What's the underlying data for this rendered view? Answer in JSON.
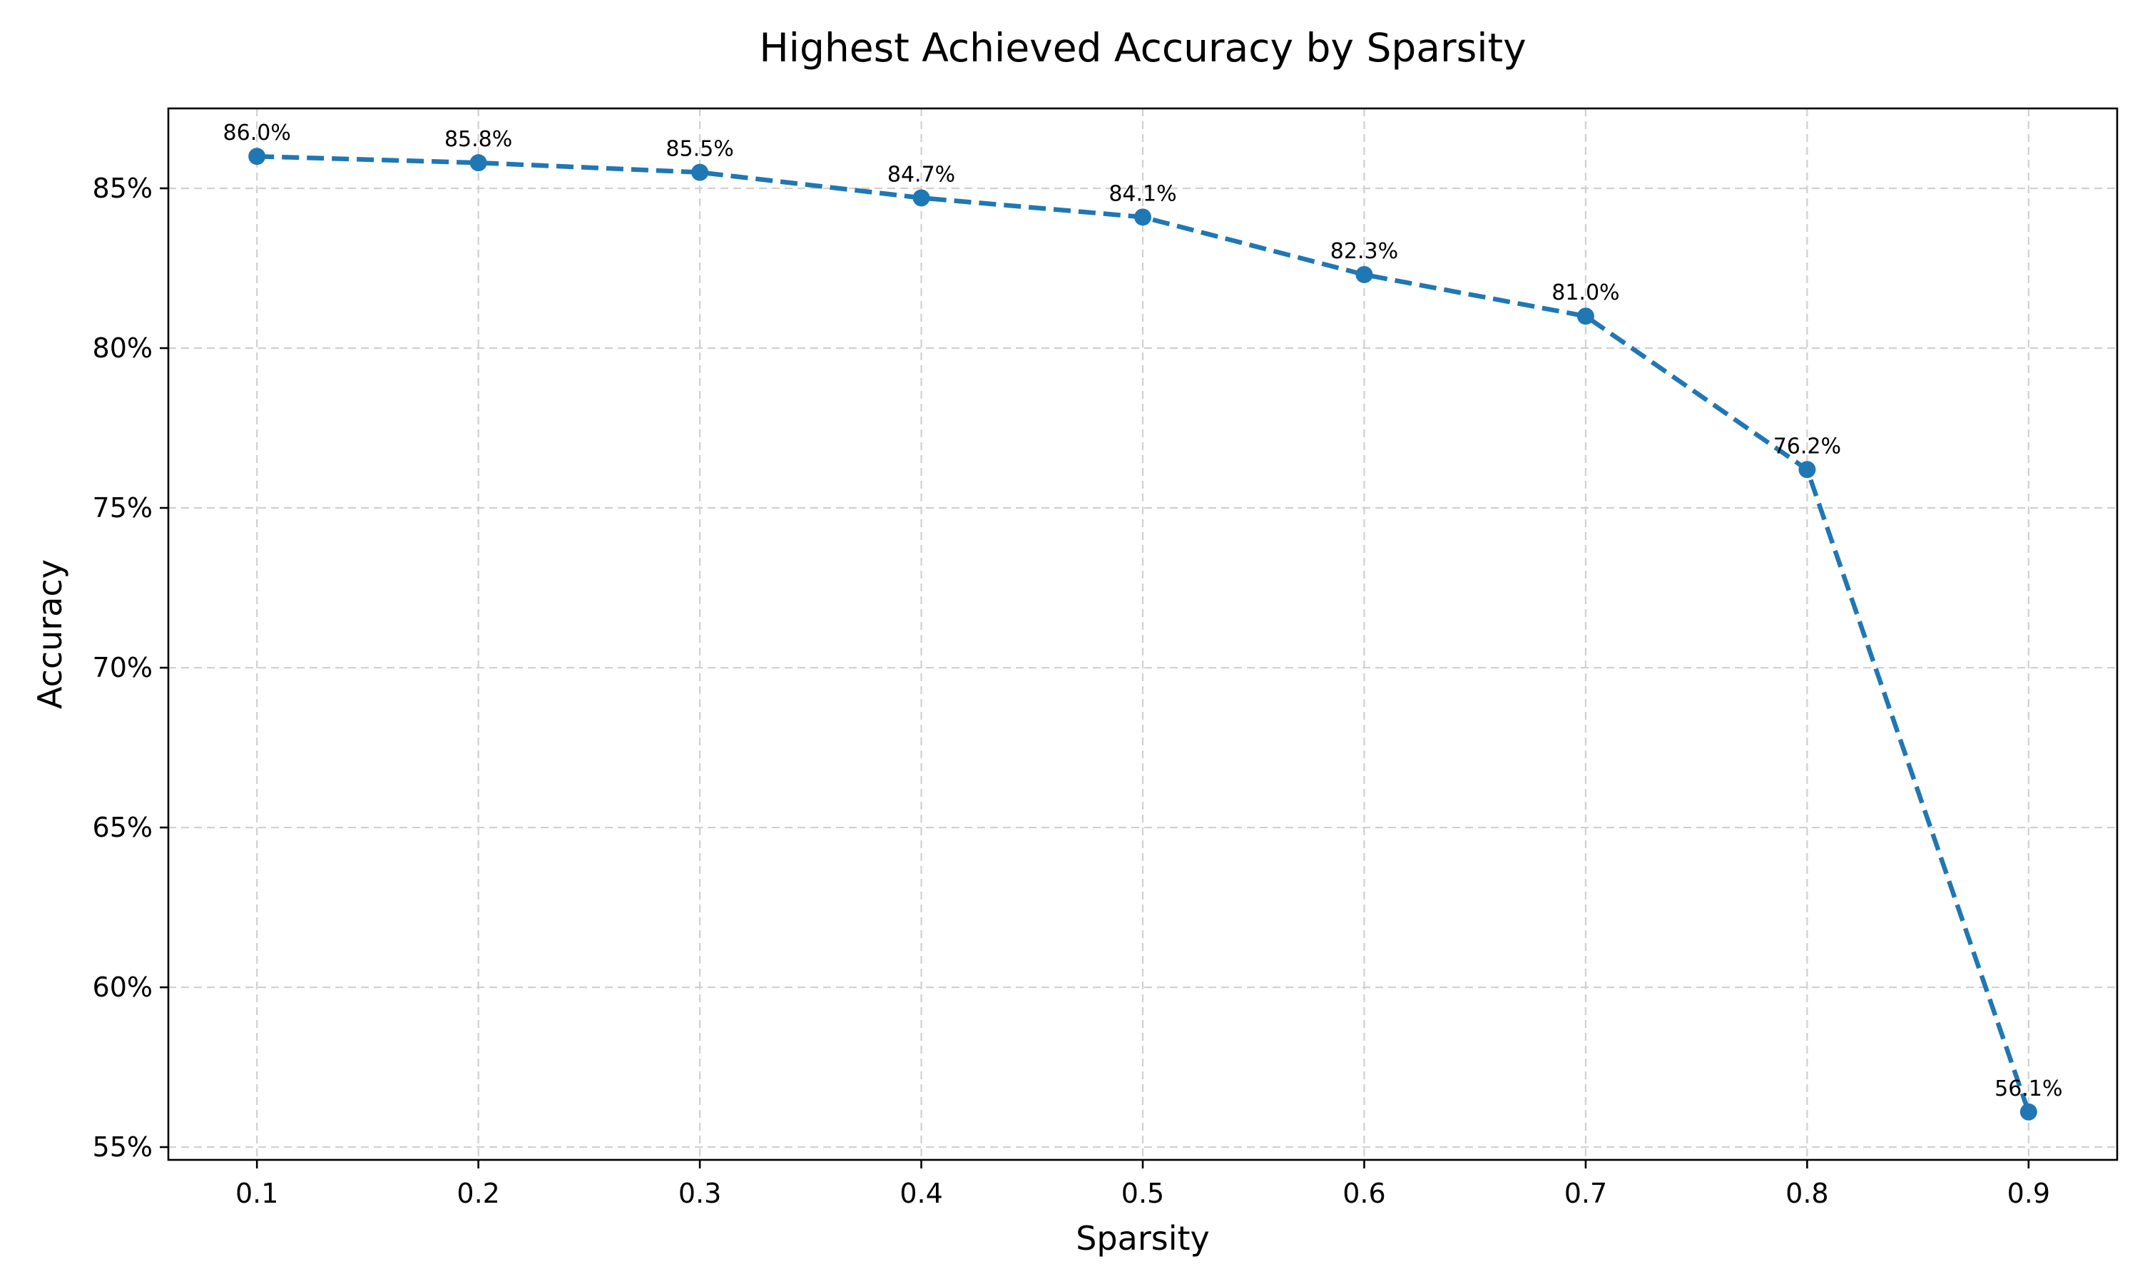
{
  "chart_data": {
    "type": "line",
    "title": "Highest Achieved Accuracy by Sparsity",
    "xlabel": "Sparsity",
    "ylabel": "Accuracy",
    "x": [
      0.1,
      0.2,
      0.3,
      0.4,
      0.5,
      0.6,
      0.7,
      0.8,
      0.9
    ],
    "series": [
      {
        "values": [
          86.0,
          85.8,
          85.5,
          84.7,
          84.1,
          82.3,
          81.0,
          76.2,
          56.1
        ],
        "data_labels": [
          "86.0%",
          "85.8%",
          "85.5%",
          "84.7%",
          "84.1%",
          "82.3%",
          "81.0%",
          "76.2%",
          "56.1%"
        ],
        "color": "#1f77b4",
        "line_style": "dashed",
        "marker": "circle"
      }
    ],
    "xlim": [
      0.06,
      0.94
    ],
    "ylim": [
      54.6,
      87.5
    ],
    "xticks": [
      0.1,
      0.2,
      0.3,
      0.4,
      0.5,
      0.6,
      0.7,
      0.8,
      0.9
    ],
    "xtick_labels": [
      "0.1",
      "0.2",
      "0.3",
      "0.4",
      "0.5",
      "0.6",
      "0.7",
      "0.8",
      "0.9"
    ],
    "yticks": [
      55,
      60,
      65,
      70,
      75,
      80,
      85
    ],
    "ytick_labels": [
      "55%",
      "60%",
      "65%",
      "70%",
      "75%",
      "80%",
      "85%"
    ],
    "grid": true,
    "legend": "none"
  }
}
